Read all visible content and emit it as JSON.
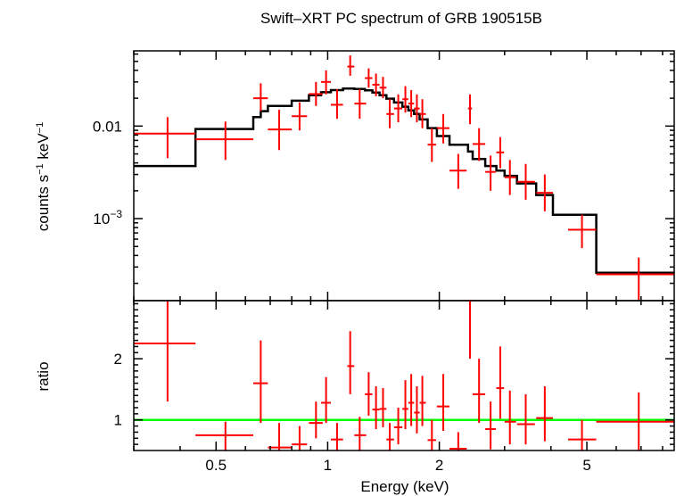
{
  "title": "Swift–XRT PC spectrum of GRB 190515B",
  "colors": {
    "data": "#ff0000",
    "model": "#000000",
    "unity": "#00ff00",
    "axes": "#000000"
  },
  "chart_data": [
    {
      "type": "line",
      "panel": "spectrum",
      "title": "Swift–XRT PC spectrum of GRB 190515B",
      "ylabel_main": "counts s",
      "ylabel_sup1": "−1",
      "ylabel_mid": " keV",
      "ylabel_sup2": "−1",
      "yscale": "log",
      "ylim": [
        0.00013,
        0.065
      ],
      "xscale": "log",
      "xlim": [
        0.3,
        8.6
      ],
      "yticks": [
        {
          "value": 0.01,
          "label": "0.01"
        },
        {
          "value": 0.001,
          "base": "10",
          "exp": "−3"
        }
      ],
      "series": [
        {
          "kind": "data",
          "points": [
            {
              "x": 0.37,
              "xlo": 0.3,
              "xhi": 0.44,
              "y": 0.0083,
              "ylo": 0.0045,
              "yhi": 0.0125
            },
            {
              "x": 0.53,
              "xlo": 0.44,
              "xhi": 0.63,
              "y": 0.0072,
              "ylo": 0.0043,
              "yhi": 0.0112
            },
            {
              "x": 0.66,
              "xlo": 0.63,
              "xhi": 0.69,
              "y": 0.02,
              "ylo": 0.0145,
              "yhi": 0.029
            },
            {
              "x": 0.74,
              "xlo": 0.69,
              "xhi": 0.8,
              "y": 0.0092,
              "ylo": 0.0055,
              "yhi": 0.015
            },
            {
              "x": 0.84,
              "xlo": 0.8,
              "xhi": 0.88,
              "y": 0.0128,
              "ylo": 0.009,
              "yhi": 0.018
            },
            {
              "x": 0.93,
              "xlo": 0.89,
              "xhi": 0.97,
              "y": 0.0222,
              "ylo": 0.0165,
              "yhi": 0.03
            },
            {
              "x": 0.99,
              "xlo": 0.96,
              "xhi": 1.02,
              "y": 0.03,
              "ylo": 0.022,
              "yhi": 0.04
            },
            {
              "x": 1.06,
              "xlo": 1.02,
              "xhi": 1.1,
              "y": 0.017,
              "ylo": 0.012,
              "yhi": 0.025
            },
            {
              "x": 1.15,
              "xlo": 1.13,
              "xhi": 1.18,
              "y": 0.044,
              "ylo": 0.035,
              "yhi": 0.058
            },
            {
              "x": 1.22,
              "xlo": 1.18,
              "xhi": 1.27,
              "y": 0.0175,
              "ylo": 0.012,
              "yhi": 0.025
            },
            {
              "x": 1.29,
              "xlo": 1.26,
              "xhi": 1.32,
              "y": 0.033,
              "ylo": 0.026,
              "yhi": 0.042
            },
            {
              "x": 1.35,
              "xlo": 1.32,
              "xhi": 1.38,
              "y": 0.028,
              "ylo": 0.021,
              "yhi": 0.037
            },
            {
              "x": 1.41,
              "xlo": 1.38,
              "xhi": 1.44,
              "y": 0.026,
              "ylo": 0.02,
              "yhi": 0.034
            },
            {
              "x": 1.47,
              "xlo": 1.44,
              "xhi": 1.51,
              "y": 0.0135,
              "ylo": 0.0095,
              "yhi": 0.0195
            },
            {
              "x": 1.55,
              "xlo": 1.51,
              "xhi": 1.59,
              "y": 0.0155,
              "ylo": 0.011,
              "yhi": 0.022
            },
            {
              "x": 1.62,
              "xlo": 1.59,
              "xhi": 1.65,
              "y": 0.0195,
              "ylo": 0.014,
              "yhi": 0.027
            },
            {
              "x": 1.68,
              "xlo": 1.65,
              "xhi": 1.71,
              "y": 0.0175,
              "ylo": 0.0125,
              "yhi": 0.0245
            },
            {
              "x": 1.74,
              "xlo": 1.71,
              "xhi": 1.77,
              "y": 0.0155,
              "ylo": 0.011,
              "yhi": 0.022
            },
            {
              "x": 1.8,
              "xlo": 1.77,
              "xhi": 1.84,
              "y": 0.0135,
              "ylo": 0.0095,
              "yhi": 0.0195
            },
            {
              "x": 1.91,
              "xlo": 1.86,
              "xhi": 1.96,
              "y": 0.0063,
              "ylo": 0.0041,
              "yhi": 0.0095
            },
            {
              "x": 2.05,
              "xlo": 1.97,
              "xhi": 2.13,
              "y": 0.0095,
              "ylo": 0.0065,
              "yhi": 0.0135
            },
            {
              "x": 2.25,
              "xlo": 2.13,
              "xhi": 2.37,
              "y": 0.0033,
              "ylo": 0.0021,
              "yhi": 0.005
            },
            {
              "x": 2.42,
              "xlo": 2.39,
              "xhi": 2.45,
              "y": 0.0155,
              "ylo": 0.0105,
              "yhi": 0.022
            },
            {
              "x": 2.56,
              "xlo": 2.46,
              "xhi": 2.66,
              "y": 0.0064,
              "ylo": 0.0042,
              "yhi": 0.0095
            },
            {
              "x": 2.75,
              "xlo": 2.66,
              "xhi": 2.84,
              "y": 0.0032,
              "ylo": 0.002,
              "yhi": 0.0048
            },
            {
              "x": 2.92,
              "xlo": 2.85,
              "xhi": 2.99,
              "y": 0.0052,
              "ylo": 0.0035,
              "yhi": 0.0076
            },
            {
              "x": 3.1,
              "xlo": 3.0,
              "xhi": 3.22,
              "y": 0.0028,
              "ylo": 0.0018,
              "yhi": 0.0043
            },
            {
              "x": 3.42,
              "xlo": 3.24,
              "xhi": 3.62,
              "y": 0.0025,
              "ylo": 0.0016,
              "yhi": 0.0039
            },
            {
              "x": 3.85,
              "xlo": 3.65,
              "xhi": 4.05,
              "y": 0.0019,
              "ylo": 0.0012,
              "yhi": 0.003
            },
            {
              "x": 4.85,
              "xlo": 4.45,
              "xhi": 5.3,
              "y": 0.00076,
              "ylo": 0.00048,
              "yhi": 0.0011
            },
            {
              "x": 6.9,
              "xlo": 5.3,
              "xhi": 8.6,
              "y": 0.00025,
              "ylo": 0.00013,
              "yhi": 0.00038
            }
          ]
        },
        {
          "kind": "model",
          "steps": [
            {
              "x0": 0.3,
              "x1": 0.44,
              "y": 0.0037
            },
            {
              "x0": 0.44,
              "x1": 0.63,
              "y": 0.0093
            },
            {
              "x0": 0.63,
              "x1": 0.66,
              "y": 0.0125
            },
            {
              "x0": 0.66,
              "x1": 0.69,
              "y": 0.0145
            },
            {
              "x0": 0.69,
              "x1": 0.8,
              "y": 0.0165
            },
            {
              "x0": 0.8,
              "x1": 0.89,
              "y": 0.0188
            },
            {
              "x0": 0.89,
              "x1": 0.96,
              "y": 0.0215
            },
            {
              "x0": 0.96,
              "x1": 1.02,
              "y": 0.0232
            },
            {
              "x0": 1.02,
              "x1": 1.1,
              "y": 0.0245
            },
            {
              "x0": 1.1,
              "x1": 1.18,
              "y": 0.0255
            },
            {
              "x0": 1.18,
              "x1": 1.26,
              "y": 0.0252
            },
            {
              "x0": 1.26,
              "x1": 1.32,
              "y": 0.0243
            },
            {
              "x0": 1.32,
              "x1": 1.38,
              "y": 0.023
            },
            {
              "x0": 1.38,
              "x1": 1.44,
              "y": 0.0215
            },
            {
              "x0": 1.44,
              "x1": 1.51,
              "y": 0.0198
            },
            {
              "x0": 1.51,
              "x1": 1.59,
              "y": 0.018
            },
            {
              "x0": 1.59,
              "x1": 1.65,
              "y": 0.0162
            },
            {
              "x0": 1.65,
              "x1": 1.71,
              "y": 0.0148
            },
            {
              "x0": 1.71,
              "x1": 1.77,
              "y": 0.0135
            },
            {
              "x0": 1.77,
              "x1": 1.86,
              "y": 0.0118
            },
            {
              "x0": 1.86,
              "x1": 1.97,
              "y": 0.0095
            },
            {
              "x0": 1.97,
              "x1": 2.13,
              "y": 0.0078
            },
            {
              "x0": 2.13,
              "x1": 2.39,
              "y": 0.0063
            },
            {
              "x0": 2.39,
              "x1": 2.46,
              "y": 0.0053
            },
            {
              "x0": 2.46,
              "x1": 2.66,
              "y": 0.0044
            },
            {
              "x0": 2.66,
              "x1": 2.85,
              "y": 0.0037
            },
            {
              "x0": 2.85,
              "x1": 3.0,
              "y": 0.0033
            },
            {
              "x0": 3.0,
              "x1": 3.24,
              "y": 0.0029
            },
            {
              "x0": 3.24,
              "x1": 3.65,
              "y": 0.0024
            },
            {
              "x0": 3.65,
              "x1": 4.05,
              "y": 0.0018
            },
            {
              "x0": 4.05,
              "x1": 5.3,
              "y": 0.0011
            },
            {
              "x0": 5.3,
              "x1": 8.6,
              "y": 0.00026
            }
          ]
        }
      ]
    },
    {
      "type": "scatter",
      "panel": "ratio",
      "ylabel": "ratio",
      "xlabel": "Energy (keV)",
      "xscale": "log",
      "xlim": [
        0.3,
        8.6
      ],
      "ylim": [
        0.5,
        2.95
      ],
      "yticks": [
        {
          "value": 2,
          "label": "2"
        },
        {
          "value": 1,
          "label": "1"
        }
      ],
      "xticks": [
        {
          "value": 0.5,
          "label": "0.5"
        },
        {
          "value": 1,
          "label": "1"
        },
        {
          "value": 2,
          "label": "2"
        },
        {
          "value": 5,
          "label": "5"
        }
      ],
      "reference_line": 1,
      "points": [
        {
          "x": 0.37,
          "xlo": 0.3,
          "xhi": 0.44,
          "y": 2.25,
          "ylo": 1.3,
          "yhi": 2.95
        },
        {
          "x": 0.53,
          "xlo": 0.44,
          "xhi": 0.63,
          "y": 0.75,
          "ylo": 0.5,
          "yhi": 0.97
        },
        {
          "x": 0.66,
          "xlo": 0.63,
          "xhi": 0.69,
          "y": 1.6,
          "ylo": 0.95,
          "yhi": 2.3
        },
        {
          "x": 0.74,
          "xlo": 0.69,
          "xhi": 0.8,
          "y": 0.55,
          "ylo": 0.5,
          "yhi": 0.95
        },
        {
          "x": 0.84,
          "xlo": 0.8,
          "xhi": 0.88,
          "y": 0.6,
          "ylo": 0.5,
          "yhi": 0.9
        },
        {
          "x": 0.93,
          "xlo": 0.89,
          "xhi": 0.97,
          "y": 0.95,
          "ylo": 0.7,
          "yhi": 1.3
        },
        {
          "x": 0.99,
          "xlo": 0.96,
          "xhi": 1.02,
          "y": 1.28,
          "ylo": 0.95,
          "yhi": 1.7
        },
        {
          "x": 1.06,
          "xlo": 1.02,
          "xhi": 1.1,
          "y": 0.68,
          "ylo": 0.5,
          "yhi": 0.95
        },
        {
          "x": 1.15,
          "xlo": 1.13,
          "xhi": 1.18,
          "y": 1.88,
          "ylo": 1.42,
          "yhi": 2.45
        },
        {
          "x": 1.22,
          "xlo": 1.18,
          "xhi": 1.27,
          "y": 0.75,
          "ylo": 0.5,
          "yhi": 1.05
        },
        {
          "x": 1.29,
          "xlo": 1.26,
          "xhi": 1.32,
          "y": 1.42,
          "ylo": 1.07,
          "yhi": 1.78
        },
        {
          "x": 1.35,
          "xlo": 1.32,
          "xhi": 1.38,
          "y": 1.17,
          "ylo": 0.85,
          "yhi": 1.55
        },
        {
          "x": 1.41,
          "xlo": 1.38,
          "xhi": 1.44,
          "y": 1.18,
          "ylo": 0.88,
          "yhi": 1.52
        },
        {
          "x": 1.47,
          "xlo": 1.44,
          "xhi": 1.51,
          "y": 0.68,
          "ylo": 0.5,
          "yhi": 0.95
        },
        {
          "x": 1.55,
          "xlo": 1.51,
          "xhi": 1.59,
          "y": 0.88,
          "ylo": 0.6,
          "yhi": 1.2
        },
        {
          "x": 1.62,
          "xlo": 1.59,
          "xhi": 1.65,
          "y": 1.18,
          "ylo": 0.85,
          "yhi": 1.65
        },
        {
          "x": 1.68,
          "xlo": 1.65,
          "xhi": 1.71,
          "y": 1.28,
          "ylo": 0.9,
          "yhi": 1.75
        },
        {
          "x": 1.74,
          "xlo": 1.71,
          "xhi": 1.77,
          "y": 1.12,
          "ylo": 0.78,
          "yhi": 1.55
        },
        {
          "x": 1.8,
          "xlo": 1.77,
          "xhi": 1.84,
          "y": 1.28,
          "ylo": 0.9,
          "yhi": 1.72
        },
        {
          "x": 1.91,
          "xlo": 1.86,
          "xhi": 1.96,
          "y": 0.67,
          "ylo": 0.5,
          "yhi": 1.0
        },
        {
          "x": 2.05,
          "xlo": 1.97,
          "xhi": 2.13,
          "y": 1.22,
          "ylo": 0.82,
          "yhi": 1.75
        },
        {
          "x": 2.25,
          "xlo": 2.13,
          "xhi": 2.37,
          "y": 0.53,
          "ylo": 0.5,
          "yhi": 0.8
        },
        {
          "x": 2.42,
          "xlo": 2.39,
          "xhi": 2.45,
          "y": 2.95,
          "ylo": 2.0,
          "yhi": 2.95
        },
        {
          "x": 2.56,
          "xlo": 2.46,
          "xhi": 2.66,
          "y": 1.42,
          "ylo": 0.95,
          "yhi": 2.0
        },
        {
          "x": 2.75,
          "xlo": 2.66,
          "xhi": 2.84,
          "y": 0.85,
          "ylo": 0.52,
          "yhi": 1.3
        },
        {
          "x": 2.92,
          "xlo": 2.85,
          "xhi": 2.99,
          "y": 1.52,
          "ylo": 1.02,
          "yhi": 2.2
        },
        {
          "x": 3.1,
          "xlo": 3.0,
          "xhi": 3.22,
          "y": 0.97,
          "ylo": 0.6,
          "yhi": 1.48
        },
        {
          "x": 3.42,
          "xlo": 3.24,
          "xhi": 3.62,
          "y": 0.93,
          "ylo": 0.6,
          "yhi": 1.42
        },
        {
          "x": 3.85,
          "xlo": 3.65,
          "xhi": 4.05,
          "y": 1.03,
          "ylo": 0.65,
          "yhi": 1.55
        },
        {
          "x": 4.85,
          "xlo": 4.45,
          "xhi": 5.3,
          "y": 0.68,
          "ylo": 0.5,
          "yhi": 1.0
        },
        {
          "x": 6.9,
          "xlo": 5.3,
          "xhi": 8.6,
          "y": 0.97,
          "ylo": 0.5,
          "yhi": 1.45
        }
      ]
    }
  ]
}
